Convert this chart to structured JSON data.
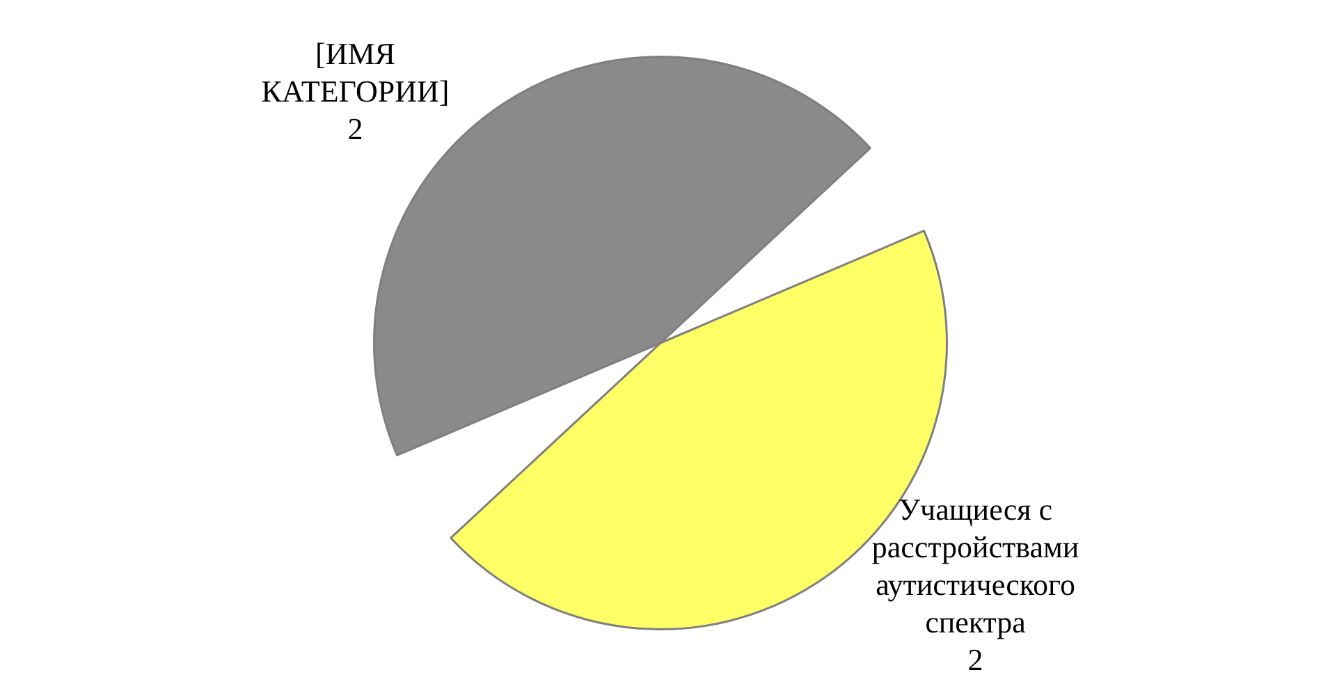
{
  "chart_data": {
    "type": "pie",
    "categories": [
      "Учащиеся с расстройствами аутистического спектра",
      "[ИМЯ КАТЕГОРИИ]"
    ],
    "values": [
      2,
      2
    ],
    "colors": [
      "#ffff66",
      "#8a8a8a"
    ],
    "data_labels": true,
    "legend": false
  }
}
